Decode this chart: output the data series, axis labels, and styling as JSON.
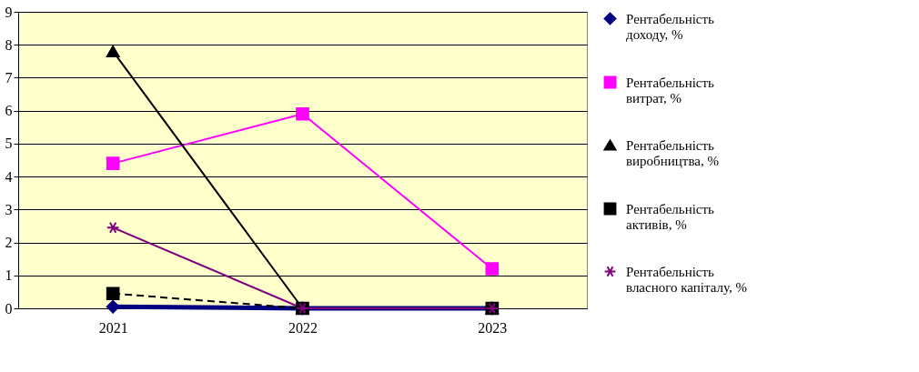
{
  "chart_data": {
    "type": "line",
    "categories": [
      "2021",
      "2022",
      "2023"
    ],
    "ylim": [
      0,
      9
    ],
    "yticks": [
      0,
      1,
      2,
      3,
      4,
      5,
      6,
      7,
      8,
      9
    ],
    "grid": "y",
    "legend": "right",
    "series": [
      {
        "name": "Рентабельність доходу, %",
        "color": "#000080",
        "values": [
          0.05,
          0,
          0
        ],
        "marker": "diamond",
        "line_style": "solid"
      },
      {
        "name": "Рентабельність витрат, %",
        "color": "#ff00ff",
        "values": [
          4.4,
          5.9,
          1.2
        ],
        "marker": "square",
        "line_style": "solid"
      },
      {
        "name": "Рентабельність виробництва, %",
        "color": "#000000",
        "values": [
          7.8,
          0,
          0
        ],
        "marker": "triangle",
        "line_style": "solid"
      },
      {
        "name": "Рентабельність активів, %",
        "color": "#000000",
        "values": [
          0.45,
          0,
          0
        ],
        "marker": "square",
        "line_style": "dashed"
      },
      {
        "name": "Рентабельність власного капіталу, %",
        "color": "#800080",
        "values": [
          2.45,
          0,
          0
        ],
        "marker": "cross",
        "line_style": "solid"
      }
    ]
  }
}
